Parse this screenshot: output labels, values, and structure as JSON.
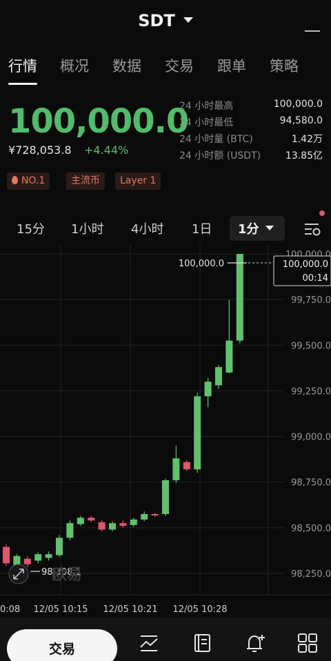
{
  "header": {
    "title": "SDT"
  },
  "tabs": [
    {
      "label": "行情",
      "active": true
    },
    {
      "label": "概况"
    },
    {
      "label": "数据"
    },
    {
      "label": "交易"
    },
    {
      "label": "跟单"
    },
    {
      "label": "策略"
    }
  ],
  "ticker": {
    "price": "100,000.0",
    "cny_price": "¥728,053.8",
    "change": "+4.44%"
  },
  "stats": [
    {
      "label": "24 小时最高",
      "value": "100,000.0"
    },
    {
      "label": "24 小时最低",
      "value": "94,580.0"
    },
    {
      "label": "24 小时量 (BTC)",
      "value": "1.42万"
    },
    {
      "label": "24 小时额 (USDT)",
      "value": "13.85亿"
    }
  ],
  "badges": [
    "NO.1",
    "主流币",
    "Layer 1"
  ],
  "timeframes": [
    "15分",
    "1小时",
    "4小时",
    "1日"
  ],
  "active_timeframe": "1分",
  "chart_data": {
    "type": "candlestick",
    "y_ticks": [
      "100,000.0",
      "99,750.0",
      "99,500.0",
      "99,250.0",
      "99,000.0",
      "98,750.0",
      "98,500.0",
      "98,250.0"
    ],
    "x_ticks": [
      "0:08",
      "12/05 10:15",
      "12/05 10:21",
      "12/05 10:28"
    ],
    "high_label": "100,000.0",
    "last_price": "100,000.0",
    "countdown": "00:14",
    "low_label": "98,308.1",
    "watermark": "欧易",
    "up_color": "#5ec26e",
    "down_color": "#e0566e",
    "candles": [
      {
        "o": 98395,
        "c": 98305,
        "h": 98410,
        "l": 98290,
        "dir": "down"
      },
      {
        "o": 98285,
        "c": 98345,
        "h": 98355,
        "l": 98270,
        "dir": "up"
      },
      {
        "o": 98330,
        "c": 98300,
        "h": 98345,
        "l": 98285,
        "dir": "down"
      },
      {
        "o": 98320,
        "c": 98355,
        "h": 98365,
        "l": 98305,
        "dir": "up"
      },
      {
        "o": 98335,
        "c": 98355,
        "h": 98370,
        "l": 98320,
        "dir": "up"
      },
      {
        "o": 98350,
        "c": 98445,
        "h": 98460,
        "l": 98340,
        "dir": "up"
      },
      {
        "o": 98445,
        "c": 98525,
        "h": 98540,
        "l": 98430,
        "dir": "up"
      },
      {
        "o": 98520,
        "c": 98555,
        "h": 98565,
        "l": 98510,
        "dir": "up"
      },
      {
        "o": 98555,
        "c": 98540,
        "h": 98565,
        "l": 98530,
        "dir": "down"
      },
      {
        "o": 98530,
        "c": 98490,
        "h": 98540,
        "l": 98480,
        "dir": "down"
      },
      {
        "o": 98490,
        "c": 98525,
        "h": 98535,
        "l": 98480,
        "dir": "up"
      },
      {
        "o": 98525,
        "c": 98510,
        "h": 98540,
        "l": 98500,
        "dir": "down"
      },
      {
        "o": 98515,
        "c": 98545,
        "h": 98555,
        "l": 98505,
        "dir": "up"
      },
      {
        "o": 98545,
        "c": 98575,
        "h": 98590,
        "l": 98535,
        "dir": "up"
      },
      {
        "o": 98575,
        "c": 98570,
        "h": 98580,
        "l": 98560,
        "dir": "down"
      },
      {
        "o": 98575,
        "c": 98760,
        "h": 98770,
        "l": 98565,
        "dir": "up"
      },
      {
        "o": 98760,
        "c": 98880,
        "h": 98950,
        "l": 98745,
        "dir": "up"
      },
      {
        "o": 98860,
        "c": 98820,
        "h": 98870,
        "l": 98810,
        "dir": "down"
      },
      {
        "o": 98820,
        "c": 99220,
        "h": 99240,
        "l": 98800,
        "dir": "up"
      },
      {
        "o": 99220,
        "c": 99300,
        "h": 99320,
        "l": 99160,
        "dir": "up"
      },
      {
        "o": 99280,
        "c": 99380,
        "h": 99390,
        "l": 99260,
        "dir": "up"
      },
      {
        "o": 99350,
        "c": 99525,
        "h": 99750,
        "l": 99345,
        "dir": "up"
      },
      {
        "o": 99525,
        "c": 100000,
        "h": 100000,
        "l": 99510,
        "dir": "up"
      }
    ]
  },
  "bottom": {
    "trade_label": "交易"
  }
}
